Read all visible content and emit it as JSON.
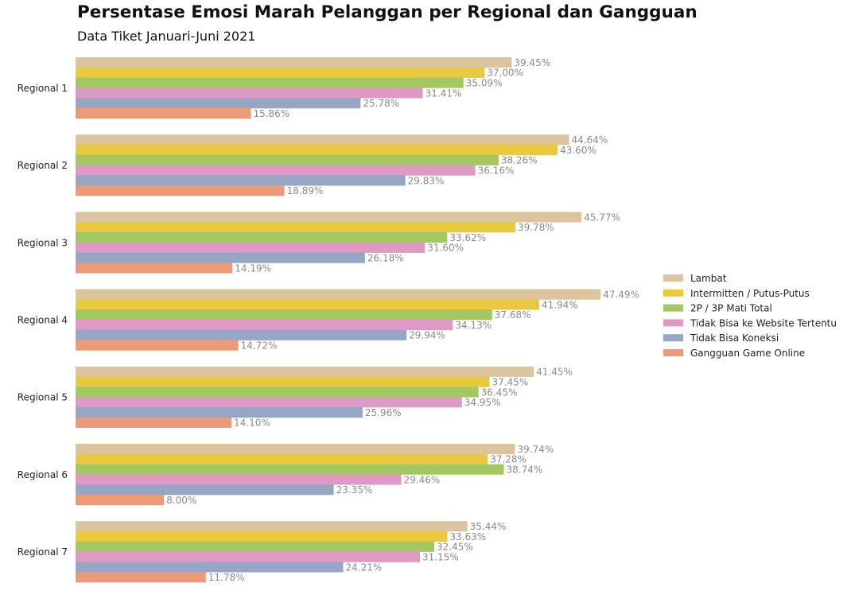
{
  "chart_data": {
    "type": "bar",
    "orientation": "horizontal",
    "title": "Persentase Emosi Marah Pelanggan per Regional dan Gangguan",
    "subtitle": "Data Tiket Januari-Juni 2021",
    "categories": [
      "Regional 1",
      "Regional 2",
      "Regional 3",
      "Regional 4",
      "Regional 5",
      "Regional 6",
      "Regional 7"
    ],
    "series": [
      {
        "name": "Lambat",
        "color": "#dbc49e",
        "values": [
          39.45,
          44.64,
          45.77,
          47.49,
          41.45,
          39.74,
          35.44
        ],
        "labels": [
          "39.45%",
          "44.64%",
          "45.77%",
          "47.49%",
          "41.45%",
          "39.74%",
          "35.44%"
        ]
      },
      {
        "name": "Intermitten / Putus-Putus",
        "color": "#e8c93f",
        "values": [
          37.0,
          43.6,
          39.78,
          41.94,
          37.45,
          37.28,
          33.63
        ],
        "labels": [
          "37.00%",
          "43.60%",
          "39.78%",
          "41.94%",
          "37.45%",
          "37.28%",
          "33.63%"
        ]
      },
      {
        "name": "2P / 3P Mati Total",
        "color": "#a3c861",
        "values": [
          35.09,
          38.26,
          33.62,
          37.68,
          36.45,
          38.74,
          32.45
        ],
        "labels": [
          "35.09%",
          "38.26%",
          "33.62%",
          "37.68%",
          "36.45%",
          "38.74%",
          "32.45%"
        ]
      },
      {
        "name": "Tidak Bisa ke Website Tertentu",
        "color": "#de99c4",
        "values": [
          31.41,
          36.16,
          31.6,
          34.13,
          34.95,
          29.46,
          31.15
        ],
        "labels": [
          "31.41%",
          "36.16%",
          "31.60%",
          "34.13%",
          "34.95%",
          "29.46%",
          "31.15%"
        ]
      },
      {
        "name": "Tidak Bisa Koneksi",
        "color": "#96a6c5",
        "values": [
          25.78,
          29.83,
          26.18,
          29.94,
          25.96,
          23.35,
          24.21
        ],
        "labels": [
          "25.78%",
          "29.83%",
          "26.18%",
          "29.94%",
          "25.96%",
          "23.35%",
          "24.21%"
        ]
      },
      {
        "name": "Gangguan Game Online",
        "color": "#ec9a77",
        "values": [
          15.86,
          18.89,
          14.19,
          14.72,
          14.1,
          8.0,
          11.78
        ],
        "labels": [
          "15.86%",
          "18.89%",
          "14.19%",
          "14.72%",
          "14.10%",
          "8.00%",
          "11.78%"
        ]
      }
    ],
    "value_format": "percent",
    "xlim": [
      0,
      50
    ],
    "grid": false,
    "legend_position": "right"
  }
}
